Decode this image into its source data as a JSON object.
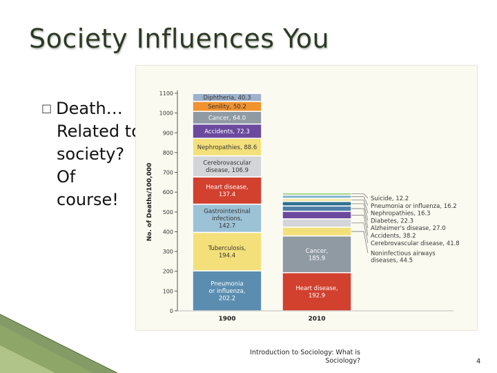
{
  "slide": {
    "title": "Society Influences You",
    "bullet": {
      "marker": "□",
      "lines": [
        "Death…",
        "Related to",
        "society?",
        "Of",
        "course!"
      ]
    },
    "footer": "Introduction to Sociology: What is Sociology?",
    "page_number": "4"
  },
  "colors": {
    "background": "#ffffff",
    "title": "#2b3a22",
    "decor_green": "#6f8a4c"
  },
  "chart_data": {
    "type": "bar",
    "stacked": true,
    "ylabel": "No. of Deaths/100,000",
    "ylim": [
      0,
      1100
    ],
    "yticks": [
      0,
      100,
      200,
      300,
      400,
      500,
      600,
      700,
      800,
      900,
      1000,
      1100
    ],
    "categories": [
      "1900",
      "2010"
    ],
    "bars": [
      {
        "category": "1900",
        "segments": [
          {
            "name": "Pneumonia or influenza",
            "value": 202.2,
            "label": [
              "Pneumonia",
              "or influenza,",
              "202.2"
            ],
            "color": "#5b8db0"
          },
          {
            "name": "Tuberculosis",
            "value": 194.4,
            "label": [
              "Tuberculosis,",
              "194.4"
            ],
            "color": "#f4e07a"
          },
          {
            "name": "Gastrointestinal infections",
            "value": 142.7,
            "label": [
              "Gastrointestinal",
              "infections,",
              "142.7"
            ],
            "color": "#9cc2d6"
          },
          {
            "name": "Heart disease",
            "value": 137.4,
            "label": [
              "Heart disease,",
              "137.4"
            ],
            "color": "#d2402e"
          },
          {
            "name": "Cerebrovascular disease",
            "value": 106.9,
            "label": [
              "Cerebrovascular",
              "disease, 106.9"
            ],
            "color": "#d3d5d8"
          },
          {
            "name": "Nephropathies",
            "value": 88.6,
            "label": [
              "Nephropathies, 88.6"
            ],
            "color": "#f4e07a"
          },
          {
            "name": "Accidents",
            "value": 72.3,
            "label": [
              "Accidents, 72.3"
            ],
            "color": "#6b4a9e"
          },
          {
            "name": "Cancer",
            "value": 64.0,
            "label": [
              "Cancer, 64.0"
            ],
            "color": "#8f9aa3"
          },
          {
            "name": "Senility",
            "value": 50.2,
            "label": [
              "Senility, 50.2"
            ],
            "color": "#f0922e"
          },
          {
            "name": "Diphtheria",
            "value": 40.3,
            "label": [
              "Diphtheria, 40.3"
            ],
            "color": "#9fb2cc"
          }
        ]
      },
      {
        "category": "2010",
        "segments": [
          {
            "name": "Heart disease",
            "value": 192.9,
            "label": [
              "Heart disease,",
              "192.9"
            ],
            "color": "#d2402e"
          },
          {
            "name": "Cancer",
            "value": 185.9,
            "label": [
              "Cancer,",
              "185.9"
            ],
            "color": "#8f9aa3"
          },
          {
            "name": "Noninfectious airways diseases",
            "value": 44.5,
            "label": [
              "Noninfectious airways",
              "diseases, 44.5"
            ],
            "color": "#f4e07a"
          },
          {
            "name": "Cerebrovascular disease",
            "value": 41.8,
            "label": [
              "Cerebrovascular disease, 41.8"
            ],
            "color": "#d3d5d8"
          },
          {
            "name": "Accidents",
            "value": 38.2,
            "label": [
              "Accidents, 38.2"
            ],
            "color": "#6b4a9e"
          },
          {
            "name": "Alzheimer's disease",
            "value": 27.0,
            "label": [
              "Alzheimer's disease, 27.0"
            ],
            "color": "#4f7fa8"
          },
          {
            "name": "Diabetes",
            "value": 22.3,
            "label": [
              "Diabetes, 22.3"
            ],
            "color": "#2f6f8f"
          },
          {
            "name": "Nephropathies",
            "value": 16.3,
            "label": [
              "Nephropathies, 16.3"
            ],
            "color": "#f1e8a8"
          },
          {
            "name": "Pneumonia or influenza",
            "value": 16.2,
            "label": [
              "Pneumonia or influenza, 16.2"
            ],
            "color": "#7fb2cf"
          },
          {
            "name": "Suicide",
            "value": 12.2,
            "label": [
              "Suicide, 12.2"
            ],
            "color": "#9fd07a"
          }
        ]
      }
    ]
  }
}
